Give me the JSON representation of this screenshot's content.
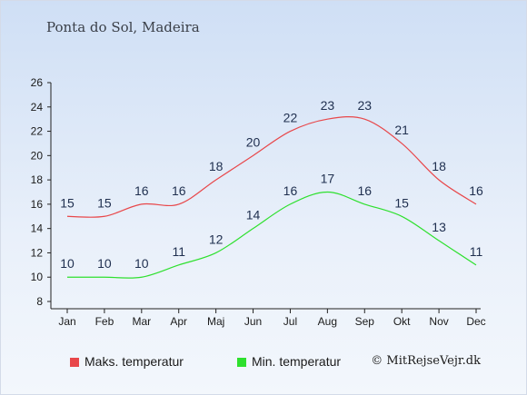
{
  "title": "Ponta do Sol, Madeira",
  "copyright": "© MitRejseVejr.dk",
  "chart_data": {
    "type": "line",
    "categories": [
      "Jan",
      "Feb",
      "Mar",
      "Apr",
      "Maj",
      "Jun",
      "Jul",
      "Aug",
      "Sep",
      "Okt",
      "Nov",
      "Dec"
    ],
    "series": [
      {
        "name": "Maks. temperatur",
        "color": "#e8474a",
        "values": [
          15,
          15,
          16,
          16,
          18,
          20,
          22,
          23,
          23,
          21,
          18,
          16
        ]
      },
      {
        "name": "Min. temperatur",
        "color": "#2ee02e",
        "values": [
          10,
          10,
          10,
          11,
          12,
          14,
          16,
          17,
          16,
          15,
          13,
          11
        ]
      }
    ],
    "yticks": [
      8,
      10,
      12,
      14,
      16,
      18,
      20,
      22,
      24,
      26
    ],
    "ylim": [
      8,
      26
    ],
    "legend_position": "bottom"
  }
}
